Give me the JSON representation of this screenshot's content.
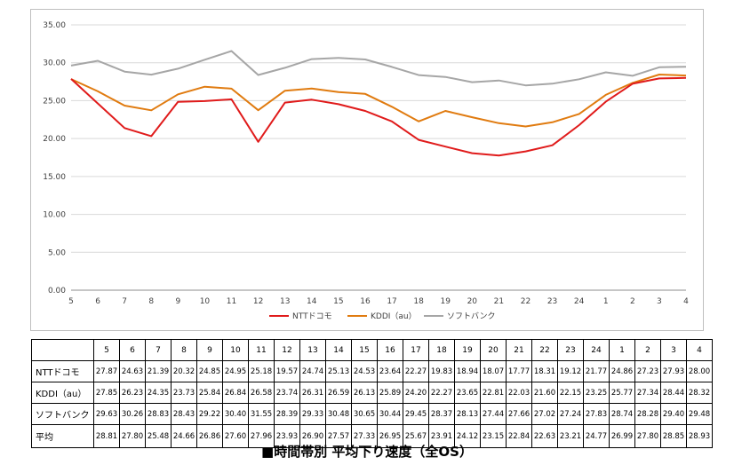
{
  "chart_data": {
    "type": "line",
    "categories": [
      "5",
      "6",
      "7",
      "8",
      "9",
      "10",
      "11",
      "12",
      "13",
      "14",
      "15",
      "16",
      "17",
      "18",
      "19",
      "20",
      "21",
      "22",
      "23",
      "24",
      "1",
      "2",
      "3",
      "4"
    ],
    "ylim": [
      0,
      35
    ],
    "yticks": [
      "0.00",
      "5.00",
      "10.00",
      "15.00",
      "20.00",
      "25.00",
      "30.00",
      "35.00"
    ],
    "grid": true,
    "legend_position": "bottom",
    "series": [
      {
        "name": "NTTドコモ",
        "color": "#e01b1b",
        "values": [
          27.87,
          24.63,
          21.39,
          20.32,
          24.85,
          24.95,
          25.18,
          19.57,
          24.74,
          25.13,
          24.53,
          23.64,
          22.27,
          19.83,
          18.94,
          18.07,
          17.77,
          18.31,
          19.12,
          21.77,
          24.86,
          27.23,
          27.93,
          28.0
        ]
      },
      {
        "name": "KDDI（au）",
        "color": "#e07b10",
        "values": [
          27.85,
          26.23,
          24.35,
          23.73,
          25.84,
          26.84,
          26.58,
          23.74,
          26.31,
          26.59,
          26.13,
          25.89,
          24.2,
          22.27,
          23.65,
          22.81,
          22.03,
          21.6,
          22.15,
          23.25,
          25.77,
          27.34,
          28.44,
          28.32
        ]
      },
      {
        "name": "ソフトバンク",
        "color": "#a6a6a6",
        "values": [
          29.63,
          30.26,
          28.83,
          28.43,
          29.22,
          30.4,
          31.55,
          28.39,
          29.33,
          30.48,
          30.65,
          30.44,
          29.45,
          28.37,
          28.13,
          27.44,
          27.66,
          27.02,
          27.24,
          27.83,
          28.74,
          28.28,
          29.4,
          29.48
        ]
      }
    ]
  },
  "table": {
    "columns": [
      "5",
      "6",
      "7",
      "8",
      "9",
      "10",
      "11",
      "12",
      "13",
      "14",
      "15",
      "16",
      "17",
      "18",
      "19",
      "20",
      "21",
      "22",
      "23",
      "24",
      "1",
      "2",
      "3",
      "4"
    ],
    "rows": [
      {
        "label": "NTTドコモ",
        "values": [
          "27.87",
          "24.63",
          "21.39",
          "20.32",
          "24.85",
          "24.95",
          "25.18",
          "19.57",
          "24.74",
          "25.13",
          "24.53",
          "23.64",
          "22.27",
          "19.83",
          "18.94",
          "18.07",
          "17.77",
          "18.31",
          "19.12",
          "21.77",
          "24.86",
          "27.23",
          "27.93",
          "28.00"
        ]
      },
      {
        "label": "KDDI（au）",
        "values": [
          "27.85",
          "26.23",
          "24.35",
          "23.73",
          "25.84",
          "26.84",
          "26.58",
          "23.74",
          "26.31",
          "26.59",
          "26.13",
          "25.89",
          "24.20",
          "22.27",
          "23.65",
          "22.81",
          "22.03",
          "21.60",
          "22.15",
          "23.25",
          "25.77",
          "27.34",
          "28.44",
          "28.32"
        ]
      },
      {
        "label": "ソフトバンク",
        "values": [
          "29.63",
          "30.26",
          "28.83",
          "28.43",
          "29.22",
          "30.40",
          "31.55",
          "28.39",
          "29.33",
          "30.48",
          "30.65",
          "30.44",
          "29.45",
          "28.37",
          "28.13",
          "27.44",
          "27.66",
          "27.02",
          "27.24",
          "27.83",
          "28.74",
          "28.28",
          "29.40",
          "29.48"
        ]
      },
      {
        "label": "平均",
        "values": [
          "28.81",
          "27.80",
          "25.48",
          "24.66",
          "26.86",
          "27.60",
          "27.96",
          "23.93",
          "26.90",
          "27.57",
          "27.33",
          "26.95",
          "25.67",
          "23.91",
          "24.12",
          "23.15",
          "22.84",
          "22.63",
          "23.21",
          "24.77",
          "26.99",
          "27.80",
          "28.85",
          "28.93"
        ]
      }
    ]
  },
  "caption": "■時間帯別 平均下り速度（全OS）"
}
